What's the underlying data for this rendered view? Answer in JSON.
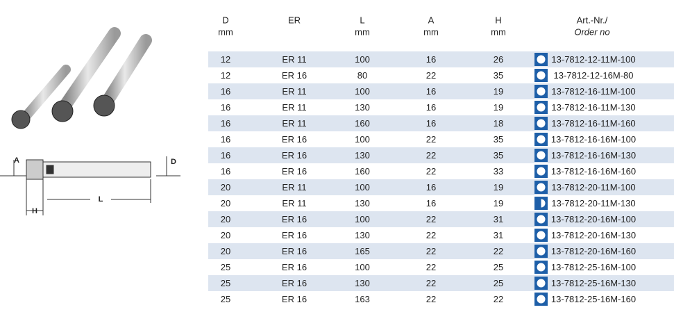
{
  "drawing": {
    "labels": {
      "a": "A",
      "d": "D",
      "h": "H",
      "l": "L"
    }
  },
  "header": [
    {
      "line1": "D",
      "line2": "mm"
    },
    {
      "line1": "ER"
    },
    {
      "line1": "L",
      "line2": "mm"
    },
    {
      "line1": "A",
      "line2": "mm"
    },
    {
      "line1": "H",
      "line2": "mm"
    },
    {
      "line1": "Art.-Nr./",
      "line2": "Order no"
    }
  ],
  "table": {
    "rows": [
      [
        12,
        "ER 11",
        100,
        16,
        26,
        "13-7812-12-11M-100"
      ],
      [
        12,
        "ER 16",
        80,
        22,
        35,
        "13-7812-12-16M-80"
      ],
      [
        16,
        "ER 11",
        100,
        16,
        19,
        "13-7812-16-11M-100"
      ],
      [
        16,
        "ER 11",
        130,
        16,
        19,
        "13-7812-16-11M-130"
      ],
      [
        16,
        "ER 11",
        160,
        16,
        18,
        "13-7812-16-11M-160"
      ],
      [
        16,
        "ER 16",
        100,
        22,
        35,
        "13-7812-16-16M-100"
      ],
      [
        16,
        "ER 16",
        130,
        22,
        35,
        "13-7812-16-16M-130"
      ],
      [
        16,
        "ER 16",
        160,
        22,
        33,
        "13-7812-16-16M-160"
      ],
      [
        20,
        "ER 11",
        100,
        16,
        19,
        "13-7812-20-11M-100"
      ],
      [
        20,
        "ER 11",
        130,
        16,
        19,
        "13-7812-20-11M-130"
      ],
      [
        20,
        "ER 16",
        100,
        22,
        31,
        "13-7812-20-16M-100"
      ],
      [
        20,
        "ER 16",
        130,
        22,
        31,
        "13-7812-20-16M-130"
      ],
      [
        20,
        "ER 16",
        165,
        22,
        22,
        "13-7812-20-16M-160"
      ],
      [
        25,
        "ER 16",
        100,
        22,
        25,
        "13-7812-25-16M-100"
      ],
      [
        25,
        "ER 16",
        130,
        22,
        25,
        "13-7812-25-16M-130"
      ],
      [
        25,
        "ER 16",
        163,
        22,
        22,
        "13-7812-25-16M-160"
      ]
    ]
  }
}
